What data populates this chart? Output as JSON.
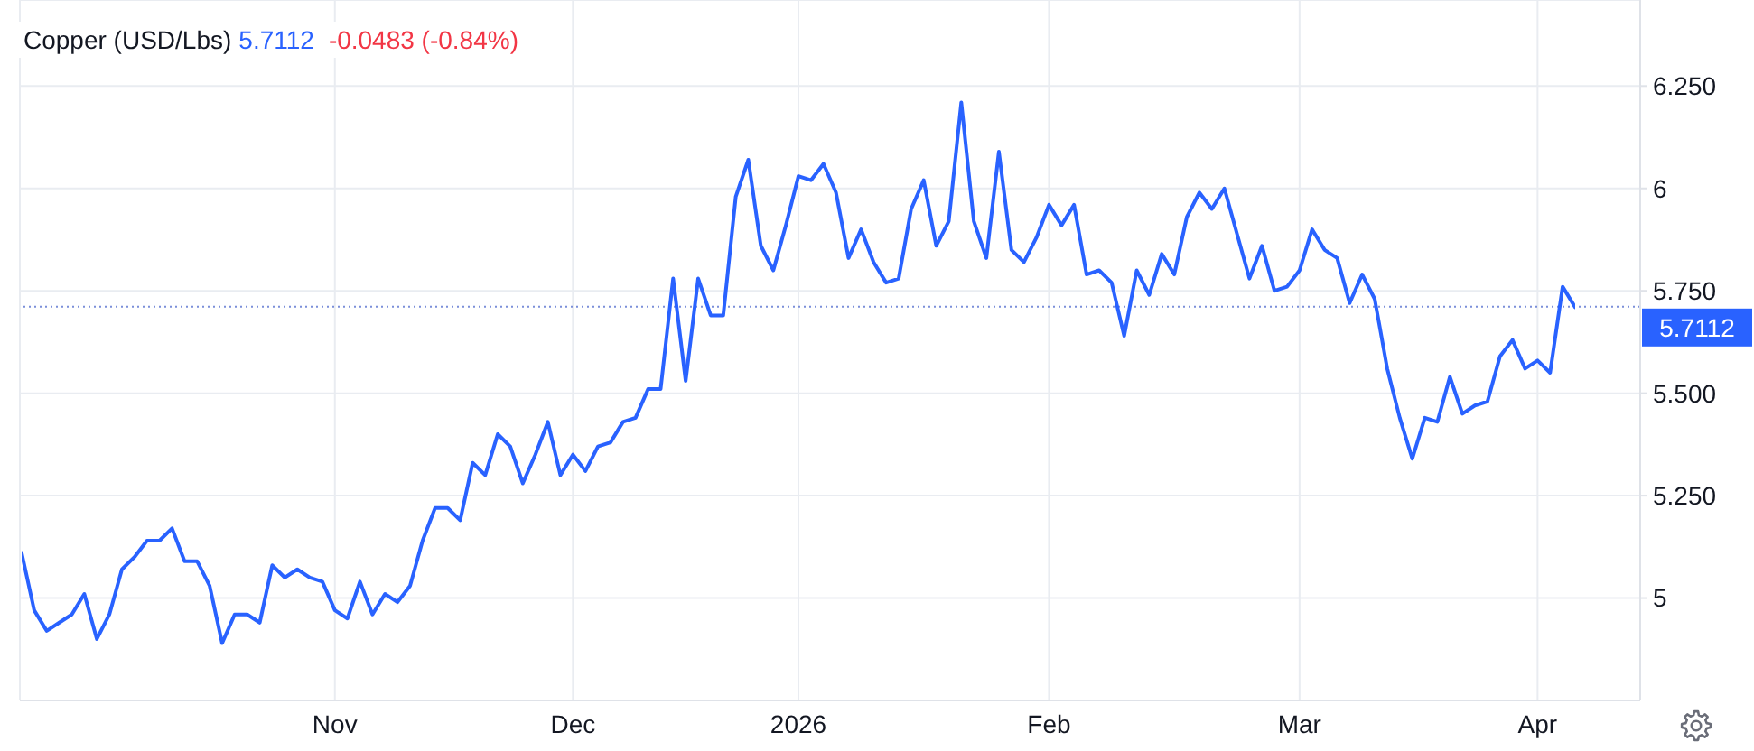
{
  "chart_data": {
    "type": "line",
    "title": "Copper (USD/Lbs)",
    "annotations": [
      "5.7112",
      "-0.0483 (-0.84%)"
    ],
    "categories": [
      null,
      null,
      null,
      null,
      null,
      null,
      null,
      null,
      null,
      null,
      null,
      null,
      null,
      null,
      null,
      null,
      null,
      null,
      null,
      null,
      null,
      null,
      null,
      null,
      null,
      "Nov",
      null,
      null,
      null,
      null,
      null,
      null,
      null,
      null,
      null,
      null,
      null,
      null,
      null,
      null,
      null,
      null,
      null,
      null,
      "Dec",
      null,
      null,
      null,
      null,
      null,
      null,
      null,
      null,
      null,
      null,
      null,
      null,
      null,
      null,
      null,
      null,
      null,
      "2026",
      null,
      null,
      null,
      null,
      null,
      null,
      null,
      null,
      null,
      null,
      null,
      null,
      null,
      null,
      null,
      null,
      null,
      null,
      null,
      "Feb",
      null,
      null,
      null,
      null,
      null,
      null,
      null,
      null,
      null,
      null,
      null,
      null,
      null,
      null,
      null,
      null,
      null,
      null,
      null,
      "Mar",
      null,
      null,
      null,
      null,
      null,
      null,
      null,
      null,
      null,
      null,
      null,
      null,
      null,
      null,
      null,
      null,
      null,
      null,
      "Apr",
      null,
      null,
      null
    ],
    "series": [
      {
        "color": "#2962ff",
        "values": [
          5.11,
          4.97,
          4.92,
          4.94,
          4.96,
          5.01,
          4.9,
          4.96,
          5.07,
          5.1,
          5.14,
          5.14,
          5.17,
          5.09,
          5.09,
          5.03,
          4.89,
          4.96,
          4.96,
          4.94,
          5.08,
          5.05,
          5.07,
          5.05,
          5.04,
          4.97,
          4.95,
          5.04,
          4.96,
          5.01,
          4.99,
          5.03,
          5.14,
          5.22,
          5.22,
          5.19,
          5.33,
          5.3,
          5.4,
          5.37,
          5.28,
          5.35,
          5.43,
          5.3,
          5.35,
          5.31,
          5.37,
          5.38,
          5.43,
          5.44,
          5.51,
          5.51,
          5.78,
          5.53,
          5.78,
          5.69,
          5.69,
          5.98,
          6.07,
          5.86,
          5.8,
          5.91,
          6.03,
          6.02,
          6.06,
          5.99,
          5.83,
          5.9,
          5.82,
          5.77,
          5.78,
          5.95,
          6.02,
          5.86,
          5.92,
          6.21,
          5.92,
          5.83,
          6.09,
          5.85,
          5.82,
          5.88,
          5.96,
          5.91,
          5.96,
          5.79,
          5.8,
          5.77,
          5.64,
          5.8,
          5.74,
          5.84,
          5.79,
          5.93,
          5.99,
          5.95,
          6.0,
          5.89,
          5.78,
          5.86,
          5.75,
          5.76,
          5.8,
          5.9,
          5.85,
          5.83,
          5.72,
          5.79,
          5.73,
          5.56,
          5.44,
          5.34,
          5.44,
          5.43,
          5.54,
          5.45,
          5.47,
          5.48,
          5.59,
          5.63,
          5.56,
          5.58,
          5.55,
          5.76,
          5.71
        ]
      }
    ],
    "ylim": [
      4.75,
      6.46
    ],
    "yticks": [
      5,
      {
        "value": 5.25,
        "label": "5.250"
      },
      {
        "value": 5.5,
        "label": "5.500"
      },
      {
        "value": 5.75,
        "label": "5.750"
      },
      6,
      {
        "value": 6.25,
        "label": "6.250"
      }
    ],
    "grid": true,
    "marker": "none",
    "line_style": "solid",
    "ref_lines": [
      {
        "axis": "y",
        "value": 5.7112,
        "label": "5.7112",
        "color": "#7b8fd9",
        "line_style": "dotted"
      }
    ]
  }
}
